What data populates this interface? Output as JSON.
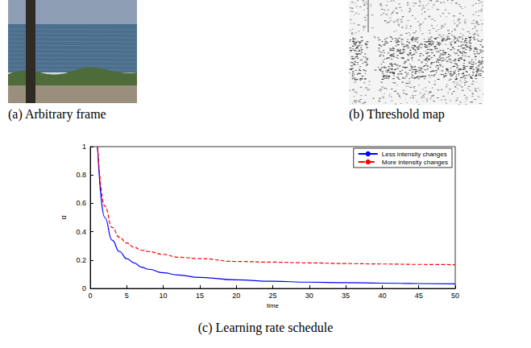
{
  "panels": [
    {
      "caption": "(a) Arbitrary frame"
    },
    {
      "caption": "(b) Threshold map"
    }
  ],
  "chart_data": {
    "type": "line",
    "title": "(c) Learning rate schedule",
    "x_label": "time",
    "y_label": "α",
    "x": [
      1,
      2,
      3,
      4,
      5,
      6,
      7,
      8,
      10,
      12,
      15,
      20,
      25,
      30,
      35,
      40,
      45,
      50
    ],
    "series": [
      {
        "name": "Less intensity changes",
        "color": "#0000ff",
        "line_style": "solid",
        "values": [
          1.0,
          0.5,
          0.34,
          0.26,
          0.21,
          0.18,
          0.15,
          0.135,
          0.11,
          0.095,
          0.077,
          0.06,
          0.05,
          0.044,
          0.04,
          0.037,
          0.034,
          0.032
        ]
      },
      {
        "name": "More intensity changes",
        "color": "#ff0000",
        "line_style": "dashed",
        "values": [
          1.0,
          0.58,
          0.43,
          0.36,
          0.32,
          0.29,
          0.27,
          0.26,
          0.24,
          0.22,
          0.21,
          0.19,
          0.185,
          0.18,
          0.175,
          0.172,
          0.169,
          0.167
        ]
      }
    ],
    "xlim": [
      0,
      50
    ],
    "xticks": [
      0,
      5,
      10,
      15,
      20,
      25,
      30,
      35,
      40,
      45,
      50
    ],
    "ylim": [
      0,
      1
    ],
    "yticks": [
      0,
      0.2,
      0.4,
      0.6,
      0.8,
      1
    ],
    "legend": "upper right",
    "grid": false
  }
}
